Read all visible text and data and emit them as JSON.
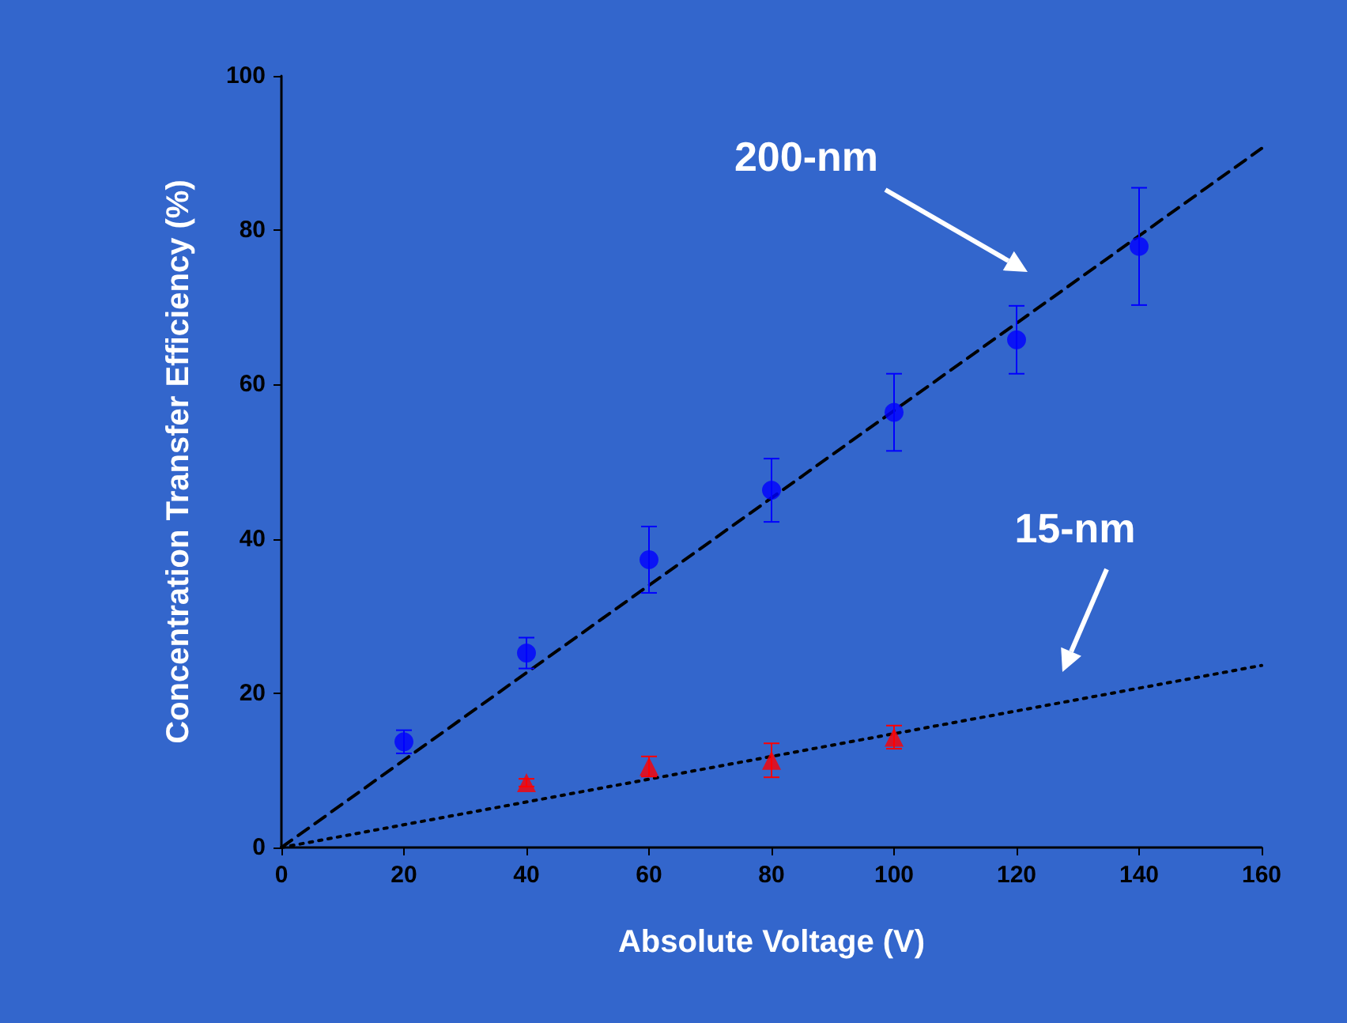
{
  "chart_data": {
    "type": "scatter",
    "xlabel": "Absolute Voltage (V)",
    "ylabel": "Concentration Transfer Efficiency (%)",
    "xlim": [
      0,
      160
    ],
    "xticks": [
      0,
      20,
      40,
      60,
      80,
      100,
      120,
      140,
      160
    ],
    "ylim": [
      0,
      100
    ],
    "yticks": [
      0,
      20,
      40,
      60,
      80,
      100
    ],
    "grid": false,
    "series": [
      {
        "color": "#0000ff",
        "marker": "circle",
        "x": [
          20,
          40,
          60,
          80,
          100,
          120,
          140
        ],
        "values": [
          13.7,
          25.2,
          37.3,
          46.3,
          56.4,
          65.8,
          77.9
        ],
        "errors": [
          1.5,
          2,
          4.3,
          4.1,
          5,
          4.4,
          7.6
        ]
      },
      {
        "color": "#ff0000",
        "marker": "triangle",
        "x": [
          40,
          60,
          80,
          100
        ],
        "values": [
          8.4,
          10.5,
          11.3,
          14.3
        ],
        "errors": [
          0.5,
          1.3,
          2.2,
          1.5
        ]
      },
      {
        "type": "line",
        "color": "#000000",
        "marker": "none",
        "line_style": "dashed",
        "x": [
          0,
          160
        ],
        "values": [
          0,
          90.6
        ]
      },
      {
        "type": "line",
        "color": "#000000",
        "marker": "none",
        "line_style": "dotted",
        "x": [
          0,
          160
        ],
        "values": [
          0,
          23.6
        ]
      }
    ],
    "annotations": [
      "200-nm",
      "15-nm"
    ]
  }
}
